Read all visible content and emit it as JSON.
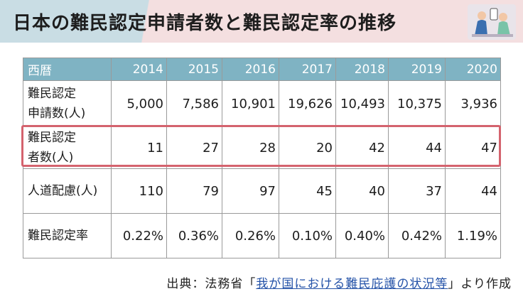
{
  "title": "日本の難民認定申請者数と難民認定率の推移",
  "table": {
    "header_label": "西暦",
    "years": [
      "2014",
      "2015",
      "2016",
      "2017",
      "2018",
      "2019",
      "2020"
    ],
    "rows": [
      {
        "label_line1": "難民認定",
        "label_line2": "申請数(人)",
        "values": [
          "5,000",
          "7,586",
          "10,901",
          "19,626",
          "10,493",
          "10,375",
          "3,936"
        ]
      },
      {
        "label_line1": "難民認定",
        "label_line2": "者数(人)",
        "values": [
          "11",
          "27",
          "28",
          "20",
          "42",
          "44",
          "47"
        ]
      },
      {
        "label_line1": "人道配慮(人)",
        "label_line2": "",
        "values": [
          "110",
          "79",
          "97",
          "45",
          "40",
          "37",
          "44"
        ]
      },
      {
        "label_line1": "難民認定率",
        "label_line2": "",
        "values": [
          "0.22%",
          "0.36%",
          "0.26%",
          "0.10%",
          "0.40%",
          "0.42%",
          "1.19%"
        ]
      }
    ]
  },
  "source": {
    "prefix": "出典：法務省「",
    "link_text": "我が国における難民庇護の状況等",
    "suffix": "」より作成"
  },
  "colors": {
    "header_fill": "#7fb3c3",
    "highlight_border": "#d4636e",
    "title_band": "#f4dfe0",
    "link": "#2553a8"
  }
}
